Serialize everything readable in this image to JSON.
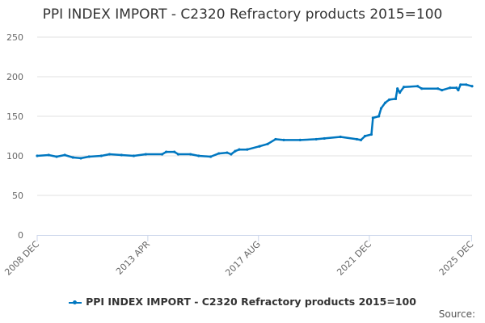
{
  "chart_data": {
    "type": "line",
    "title": "PPI INDEX IMPORT - C2320 Refractory products 2015=100",
    "xlabel": "",
    "ylabel": "",
    "ylim": [
      0,
      250
    ],
    "yticks": [
      0,
      50,
      100,
      150,
      200,
      250
    ],
    "xlim": [
      2008.92,
      2025.94
    ],
    "xticks": [
      {
        "label": "2008 DEC",
        "value": 2008.92
      },
      {
        "label": "2013 APR",
        "value": 2013.25
      },
      {
        "label": "2017 AUG",
        "value": 2017.58
      },
      {
        "label": "2021 DEC",
        "value": 2021.92
      },
      {
        "label": "2025 DEC",
        "value": 2025.92
      }
    ],
    "grid": true,
    "legend_position": "bottom",
    "series": [
      {
        "name": "PPI INDEX IMPORT - C2320 Refractory products 2015=100",
        "color": "#0077c0",
        "x": [
          2008.92,
          2009.37,
          2009.68,
          2010.0,
          2010.32,
          2010.63,
          2010.95,
          2011.43,
          2011.75,
          2012.22,
          2012.7,
          2013.17,
          2013.81,
          2013.97,
          2014.29,
          2014.44,
          2014.92,
          2015.24,
          2015.71,
          2016.03,
          2016.35,
          2016.51,
          2016.67,
          2016.83,
          2017.14,
          2017.62,
          2017.94,
          2018.25,
          2018.57,
          2019.21,
          2019.84,
          2020.16,
          2020.79,
          2021.43,
          2021.59,
          2021.75,
          2022.0,
          2022.06,
          2022.29,
          2022.38,
          2022.54,
          2022.7,
          2022.95,
          2023.02,
          2023.11,
          2023.27,
          2023.81,
          2023.97,
          2024.6,
          2024.76,
          2025.08,
          2025.33,
          2025.4,
          2025.49,
          2025.71,
          2025.94
        ],
        "values": [
          100,
          101,
          99,
          101,
          98,
          97,
          99,
          100,
          102,
          101,
          100,
          102,
          102,
          105,
          105,
          102,
          102,
          100,
          99,
          103,
          104,
          102,
          106,
          108,
          108,
          112,
          115,
          121,
          120,
          120,
          121,
          122,
          124,
          121,
          120,
          125,
          127,
          148,
          150,
          160,
          167,
          171,
          172,
          185,
          180,
          187,
          188,
          185,
          185,
          183,
          186,
          186,
          183,
          190,
          190,
          188
        ]
      }
    ],
    "source_label": "Source:"
  }
}
